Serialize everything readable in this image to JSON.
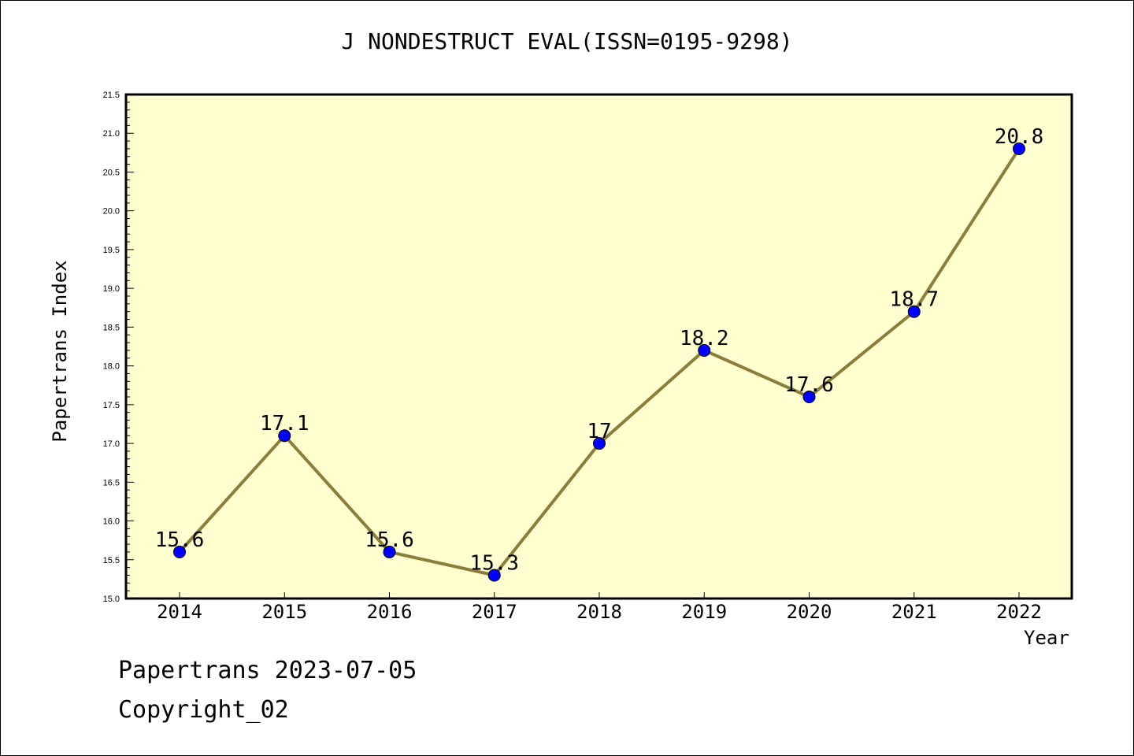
{
  "title": "J NONDESTRUCT EVAL(ISSN=0195-9298)",
  "footer": {
    "line1": "Papertrans 2023-07-05",
    "line2": "Copyright_02"
  },
  "colors": {
    "plot_background": "#ffffd0",
    "line": "#8b7d3a",
    "marker": "#0000ff"
  },
  "chart_data": {
    "type": "line",
    "title": "J NONDESTRUCT EVAL(ISSN=0195-9298)",
    "xlabel": "Year",
    "ylabel": "Papertrans Index",
    "categories": [
      "2014",
      "2015",
      "2016",
      "2017",
      "2018",
      "2019",
      "2020",
      "2021",
      "2022"
    ],
    "series": [
      {
        "values": [
          15.6,
          17.1,
          15.6,
          15.3,
          17,
          18.2,
          17.6,
          18.7,
          20.8
        ],
        "labels": [
          "15.6",
          "17.1",
          "15.6",
          "15.3",
          "17",
          "18.2",
          "17.6",
          "18.7",
          "20.8"
        ]
      }
    ],
    "ylim": [
      15.0,
      21.5
    ],
    "yticks": [
      "15.0",
      "15.5",
      "16.0",
      "16.5",
      "17.0",
      "17.5",
      "18.0",
      "18.5",
      "19.0",
      "19.5",
      "20.0",
      "20.5",
      "21.0",
      "21.5"
    ],
    "grid": false,
    "legend": "none"
  }
}
